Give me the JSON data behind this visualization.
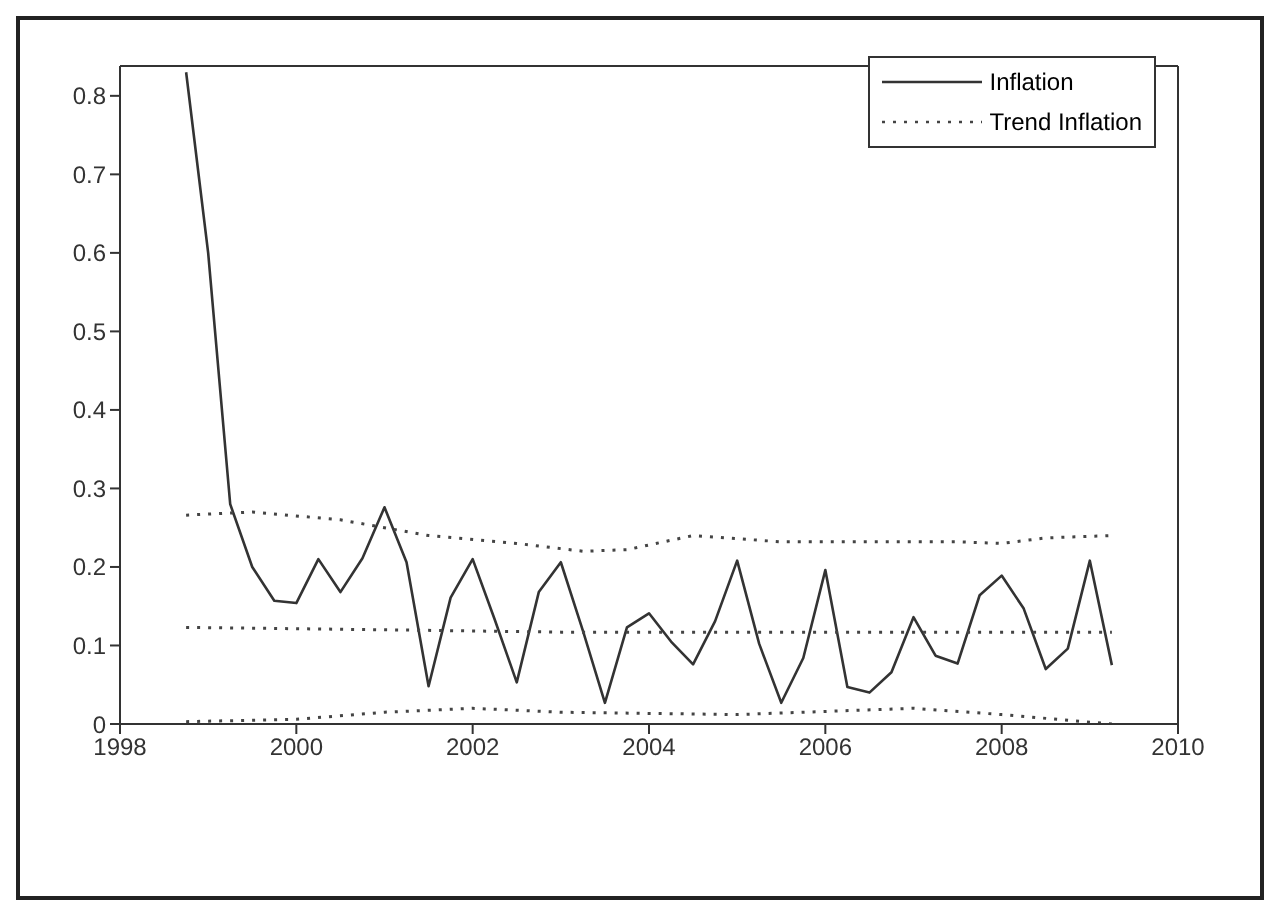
{
  "chart_data": {
    "type": "line",
    "xlim": [
      1998,
      2010
    ],
    "xticks": [
      1998,
      2000,
      2002,
      2004,
      2006,
      2008,
      2010
    ],
    "ylim": [
      0,
      0.838
    ],
    "yticks": [
      0,
      0.1,
      0.2,
      0.3,
      0.4,
      0.5,
      0.6,
      0.7,
      0.8
    ],
    "grid": false,
    "legend": "top right",
    "marker": "none",
    "series": [
      {
        "name": "Inflation",
        "color": "#333333",
        "line_style": "solid",
        "x": [
          1998.75,
          1999,
          1999.25,
          1999.5,
          1999.75,
          2000,
          2000.25,
          2000.5,
          2000.75,
          2001,
          2001.25,
          2001.5,
          2001.75,
          2002,
          2002.25,
          2002.5,
          2002.75,
          2003,
          2003.25,
          2003.5,
          2003.75,
          2004,
          2004.25,
          2004.5,
          2004.75,
          2005,
          2005.25,
          2005.5,
          2005.75,
          2006,
          2006.25,
          2006.5,
          2006.75,
          2007,
          2007.25,
          2007.5,
          2007.75,
          2008,
          2008.25,
          2008.5,
          2008.75,
          2009,
          2009.25
        ],
        "values": [
          0.83,
          0.6,
          0.28,
          0.2,
          0.157,
          0.154,
          0.21,
          0.168,
          0.211,
          0.276,
          0.206,
          0.048,
          0.161,
          0.21,
          0.133,
          0.053,
          0.168,
          0.206,
          0.119,
          0.027,
          0.123,
          0.141,
          0.105,
          0.076,
          0.131,
          0.208,
          0.102,
          0.027,
          0.084,
          0.196,
          0.047,
          0.04,
          0.066,
          0.136,
          0.087,
          0.077,
          0.164,
          0.189,
          0.147,
          0.07,
          0.096,
          0.208,
          0.075
        ]
      },
      {
        "name": "Trend Inflation",
        "color": "#444444",
        "line_style": "dotted",
        "x": [
          1998.75,
          1999.5,
          2000.5,
          2001.5,
          2002.5,
          2003.25,
          2003.75,
          2004.5,
          2005.5,
          2006.5,
          2007.5,
          2008,
          2008.5,
          2009.25
        ],
        "values": [
          0.266,
          0.27,
          0.26,
          0.24,
          0.23,
          0.22,
          0.222,
          0.24,
          0.232,
          0.232,
          0.232,
          0.23,
          0.237,
          0.24
        ]
      },
      {
        "color": "#444444",
        "line_style": "dotted",
        "x": [
          1998.75,
          2001,
          2003,
          2005,
          2007,
          2009.25
        ],
        "values": [
          0.123,
          0.12,
          0.117,
          0.117,
          0.117,
          0.117
        ]
      },
      {
        "color": "#444444",
        "line_style": "dotted",
        "x": [
          1998.75,
          2000,
          2001,
          2002,
          2003,
          2005,
          2007,
          2008,
          2009.25
        ],
        "values": [
          0.003,
          0.006,
          0.015,
          0.02,
          0.015,
          0.012,
          0.02,
          0.012,
          0
        ]
      }
    ]
  }
}
